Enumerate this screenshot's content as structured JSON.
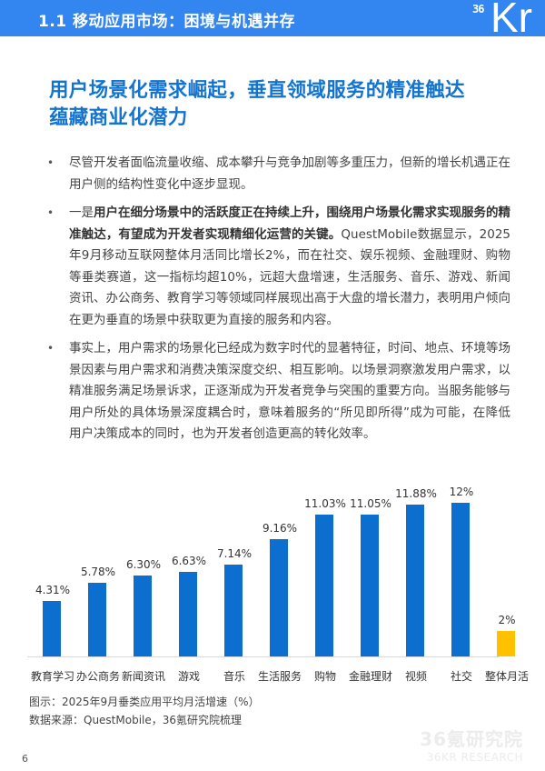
{
  "header": {
    "title": "1.1 移动应用市场：困境与机遇并存",
    "logo_small": "36",
    "logo_large": "Kr",
    "bar_color": "#3385f0"
  },
  "heading": {
    "line1": "用户场景化需求崛起，垂直领域服务的精准触达",
    "line2": "蕴藏商业化潜力",
    "color": "#1273d1"
  },
  "bullets": [
    {
      "plain_before": "尽管开发者面临流量收缩、成本攀升与竞争加剧等多重压力，但新的增长机遇正在用户侧的结构性变化中逐步显现。",
      "bold": "",
      "plain_after": ""
    },
    {
      "plain_before": "一是",
      "bold": "用户在细分场景中的活跃度正在持续上升，围绕用户场景化需求实现服务的精准触达，有望成为开发者实现精细化运营的关键。",
      "plain_after": "QuestMobile数据显示，2025年9月移动互联网整体月活同比增长2%，而在社交、娱乐视频、金融理财、购物等垂类赛道，这一指标均超10%，远超大盘增速，生活服务、音乐、游戏、新闻资讯、办公商务、教育学习等领域同样展现出高于大盘的增长潜力，表明用户倾向在更为垂直的场景中获取更为直接的服务和内容。"
    },
    {
      "plain_before": "事实上，用户需求的场景化已经成为数字时代的显著特征，时间、地点、环境等场景因素与用户需求和消费决策深度交织、相互影响。以场景洞察激发用户需求，以精准服务满足场景诉求，正逐渐成为开发者竞争与突围的重要方向。当服务能够与用户所处的具体场景深度耦合时，意味着服务的“所见即所得”成为可能，在降低用户决策成本的同时，也为开发者创造更高的转化效率。",
      "bold": "",
      "plain_after": ""
    }
  ],
  "bullet_glyph": "•",
  "chart_data": {
    "type": "bar",
    "title": "2025年9月垂类应用平均月活增速（%）",
    "xlabel": "",
    "ylabel": "",
    "categories": [
      "教育学习",
      "办公商务",
      "新闻资讯",
      "游戏",
      "音乐",
      "生活服务",
      "购物",
      "金融理财",
      "视频",
      "社交",
      "整体月活"
    ],
    "values": [
      4.31,
      5.78,
      6.3,
      6.63,
      7.14,
      9.16,
      11.03,
      11.05,
      11.88,
      12,
      2
    ],
    "value_labels": [
      "4.31%",
      "5.78%",
      "6.30%",
      "6.63%",
      "7.14%",
      "9.16%",
      "11.03%",
      "11.05%",
      "11.88%",
      "12%",
      "2%"
    ],
    "colors": [
      "#0c6fcf",
      "#0c6fcf",
      "#0c6fcf",
      "#0c6fcf",
      "#0c6fcf",
      "#0c6fcf",
      "#0c6fcf",
      "#0c6fcf",
      "#0c6fcf",
      "#0c6fcf",
      "#ffc000"
    ],
    "grid": false,
    "legend": "none",
    "ylim": [
      0,
      12
    ]
  },
  "caption": {
    "figure": "图示：2025年9月垂类应用平均月活增速（%）",
    "source": "数据来源：QuestMobile，36氪研究院梳理"
  },
  "footer": {
    "page_number": "6",
    "watermark_cn": "36氪研究院",
    "watermark_en": "36KR RESEARCH"
  }
}
